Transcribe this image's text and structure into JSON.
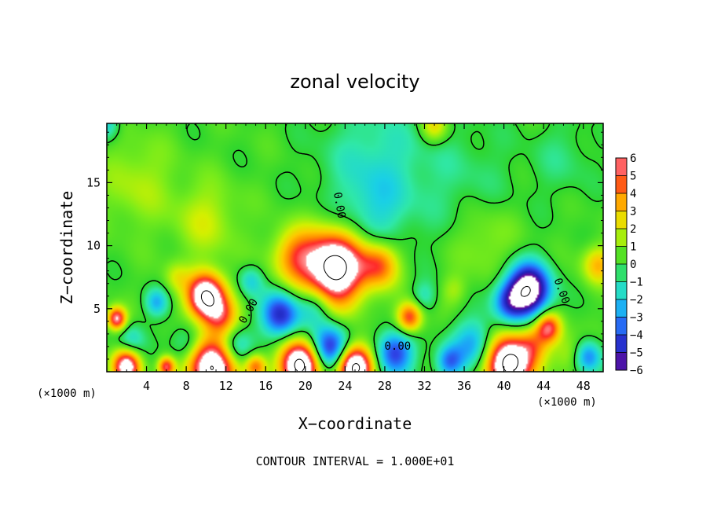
{
  "chart_data": {
    "type": "heatmap",
    "title": "zonal velocity",
    "xlabel": "X−coordinate",
    "ylabel": "Z−coordinate",
    "x_unit_left": "(×1000 m)",
    "x_unit_right": "(×1000 m)",
    "x_ticks": [
      4,
      8,
      12,
      16,
      20,
      24,
      28,
      32,
      36,
      40,
      44,
      48
    ],
    "y_ticks": [
      5,
      10,
      15
    ],
    "xlim": [
      0,
      50
    ],
    "ylim": [
      0,
      19.7
    ],
    "colorbar_ticks": [
      6,
      5,
      4,
      3,
      2,
      1,
      0,
      -1,
      -2,
      -3,
      -4,
      -5,
      -6
    ],
    "colorbar_range": [
      -6,
      6
    ],
    "footer": "CONTOUR INTERVAL = 1.000E+01",
    "contour_labels": [
      {
        "text": "0.00",
        "x": 14.3,
        "y": 4.8,
        "angle": -60
      },
      {
        "text": "0.00",
        "x": 29.3,
        "y": 2.0,
        "angle": 0
      },
      {
        "text": "0.00",
        "x": 45.8,
        "y": 6.4,
        "angle": 70
      },
      {
        "text": "0.00",
        "x": 23.4,
        "y": 13.2,
        "angle": 80
      }
    ],
    "features": [
      {
        "x": 0,
        "y": 19.6,
        "v": -2.2,
        "r": 1.2
      },
      {
        "x": 27,
        "y": 16.5,
        "v": -1.6,
        "r": 5
      },
      {
        "x": 27,
        "y": 12.5,
        "v": -1.2,
        "r": 3
      },
      {
        "x": 36,
        "y": 15,
        "v": -0.8,
        "r": 5
      },
      {
        "x": 46,
        "y": 17,
        "v": -0.8,
        "r": 3
      },
      {
        "x": 3,
        "y": 15,
        "v": 1.3,
        "r": 3.5
      },
      {
        "x": 10,
        "y": 12,
        "v": 1.6,
        "r": 3
      },
      {
        "x": 38,
        "y": 10.5,
        "v": 1.2,
        "r": 3
      },
      {
        "x": 33,
        "y": 19.5,
        "v": 2.5,
        "r": 1.3
      },
      {
        "x": 23,
        "y": 8.2,
        "v": 9,
        "r": 2.8
      },
      {
        "x": 19,
        "y": 9.2,
        "v": 3.5,
        "r": 2.2
      },
      {
        "x": 27.5,
        "y": 8.5,
        "v": 4,
        "r": 1.8
      },
      {
        "x": 10,
        "y": 6,
        "v": 8,
        "r": 1.8
      },
      {
        "x": 11.5,
        "y": 4.3,
        "v": 3.5,
        "r": 1.6
      },
      {
        "x": 1,
        "y": 4.2,
        "v": 6,
        "r": 0.9
      },
      {
        "x": 49.5,
        "y": 8.5,
        "v": 3,
        "r": 1.5
      },
      {
        "x": 7,
        "y": 7.5,
        "v": 1.5,
        "r": 1.2
      },
      {
        "x": 42.5,
        "y": 6.5,
        "v": -8,
        "r": 2
      },
      {
        "x": 40.5,
        "y": 5.5,
        "v": -3.5,
        "r": 1.6
      },
      {
        "x": 17.5,
        "y": 4.5,
        "v": -5,
        "r": 1.8
      },
      {
        "x": 21,
        "y": 5.2,
        "v": -2.2,
        "r": 1.6
      },
      {
        "x": 14.5,
        "y": 7.2,
        "v": -2,
        "r": 1.2
      },
      {
        "x": 5,
        "y": 5.5,
        "v": -2.5,
        "r": 1.1
      },
      {
        "x": 22.5,
        "y": 1.8,
        "v": -5.5,
        "r": 1.8
      },
      {
        "x": 29,
        "y": 1.5,
        "v": -4.5,
        "r": 1.8
      },
      {
        "x": 30.5,
        "y": 4.3,
        "v": 5,
        "r": 1.2
      },
      {
        "x": 37,
        "y": 2.2,
        "v": -3,
        "r": 2
      },
      {
        "x": 34.5,
        "y": 0.8,
        "v": -3.5,
        "r": 1.3
      },
      {
        "x": 44.5,
        "y": 3.5,
        "v": 5,
        "r": 1.2
      },
      {
        "x": 43,
        "y": 2.2,
        "v": 2.5,
        "r": 1.5
      },
      {
        "x": 40.5,
        "y": 0.6,
        "v": 9,
        "r": 2.2
      },
      {
        "x": 48.5,
        "y": 1.2,
        "v": -3.5,
        "r": 1.3
      },
      {
        "x": 19.5,
        "y": 0.5,
        "v": 9,
        "r": 1.9
      },
      {
        "x": 25,
        "y": 0.4,
        "v": 9,
        "r": 1.7
      },
      {
        "x": 10.5,
        "y": 0.3,
        "v": 8,
        "r": 2.3
      },
      {
        "x": 2,
        "y": 0.4,
        "v": 7,
        "r": 1.3
      },
      {
        "x": 6,
        "y": 0.4,
        "v": 5,
        "r": 0.8
      },
      {
        "x": 15,
        "y": 0.4,
        "v": 4,
        "r": 1
      },
      {
        "x": 8,
        "y": 2.2,
        "v": -2,
        "r": 1.5
      },
      {
        "x": 13,
        "y": 2,
        "v": -2.5,
        "r": 1.5
      },
      {
        "x": 2.5,
        "y": 2.6,
        "v": -1.8,
        "r": 1.3
      },
      {
        "x": 32,
        "y": 6,
        "v": -1.5,
        "r": 1.2
      },
      {
        "x": 46.5,
        "y": 1.5,
        "v": 1.5,
        "r": 1.5
      },
      {
        "x": 35,
        "y": 6.5,
        "v": 1.2,
        "r": 1.2
      }
    ]
  }
}
